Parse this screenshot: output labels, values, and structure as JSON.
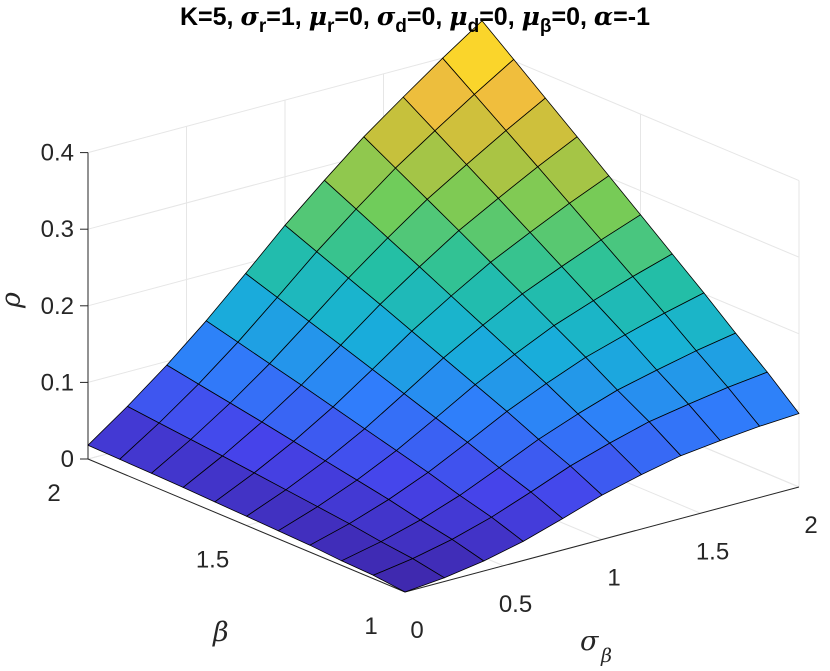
{
  "chart_data": {
    "type": "surface",
    "title_parts": [
      {
        "text": "K=5, ",
        "style": "normal"
      },
      {
        "text": "σ",
        "style": "greek"
      },
      {
        "text": "r",
        "style": "sub"
      },
      {
        "text": "=1, ",
        "style": "normal"
      },
      {
        "text": "μ",
        "style": "greek"
      },
      {
        "text": "r",
        "style": "sub"
      },
      {
        "text": "=0, ",
        "style": "normal"
      },
      {
        "text": "σ",
        "style": "greek"
      },
      {
        "text": "d",
        "style": "sub"
      },
      {
        "text": "=0, ",
        "style": "normal"
      },
      {
        "text": "μ",
        "style": "greek"
      },
      {
        "text": "d",
        "style": "sub"
      },
      {
        "text": "=0, ",
        "style": "normal"
      },
      {
        "text": "μ",
        "style": "greek"
      },
      {
        "text": "β",
        "style": "sub"
      },
      {
        "text": "=0, ",
        "style": "normal"
      },
      {
        "text": "α",
        "style": "greek"
      },
      {
        "text": "=-1",
        "style": "normal"
      }
    ],
    "xlabel": "σ",
    "xlabel_sub": "β",
    "ylabel": "β",
    "zlabel": "ρ",
    "x_ticks": [
      "0",
      "0.5",
      "1",
      "1.5",
      "2"
    ],
    "y_ticks": [
      "1",
      "1.5",
      "2"
    ],
    "z_ticks": [
      "0",
      "0.1",
      "0.2",
      "0.3",
      "0.4"
    ],
    "xlim": [
      0,
      2
    ],
    "ylim": [
      1,
      2
    ],
    "zlim": [
      0,
      0.4
    ],
    "x": [
      0,
      0.2,
      0.4,
      0.6,
      0.8,
      1.0,
      1.2,
      1.4,
      1.6,
      1.8,
      2.0
    ],
    "y": [
      1.0,
      1.1,
      1.2,
      1.3,
      1.4,
      1.5,
      1.6,
      1.7,
      1.8,
      1.9,
      2.0
    ],
    "z_at_sigma0": [
      0,
      0.0045,
      0.006,
      0.009,
      0.0105,
      0.012,
      0.0135,
      0.015,
      0.016,
      0.017,
      0.018
    ],
    "z_at_beta1": [
      0,
      0.0048,
      0.013,
      0.025,
      0.041,
      0.058,
      0.071,
      0.082,
      0.088,
      0.093,
      0.096
    ],
    "z_max": 0.435,
    "grid": true,
    "colormap": "parula",
    "colormap_stops": [
      "#3e26a8",
      "#4643ea",
      "#2f7efb",
      "#17b1d7",
      "#25c0a0",
      "#72cc59",
      "#c1c13c",
      "#fbbd3d",
      "#f9fb0e"
    ]
  }
}
